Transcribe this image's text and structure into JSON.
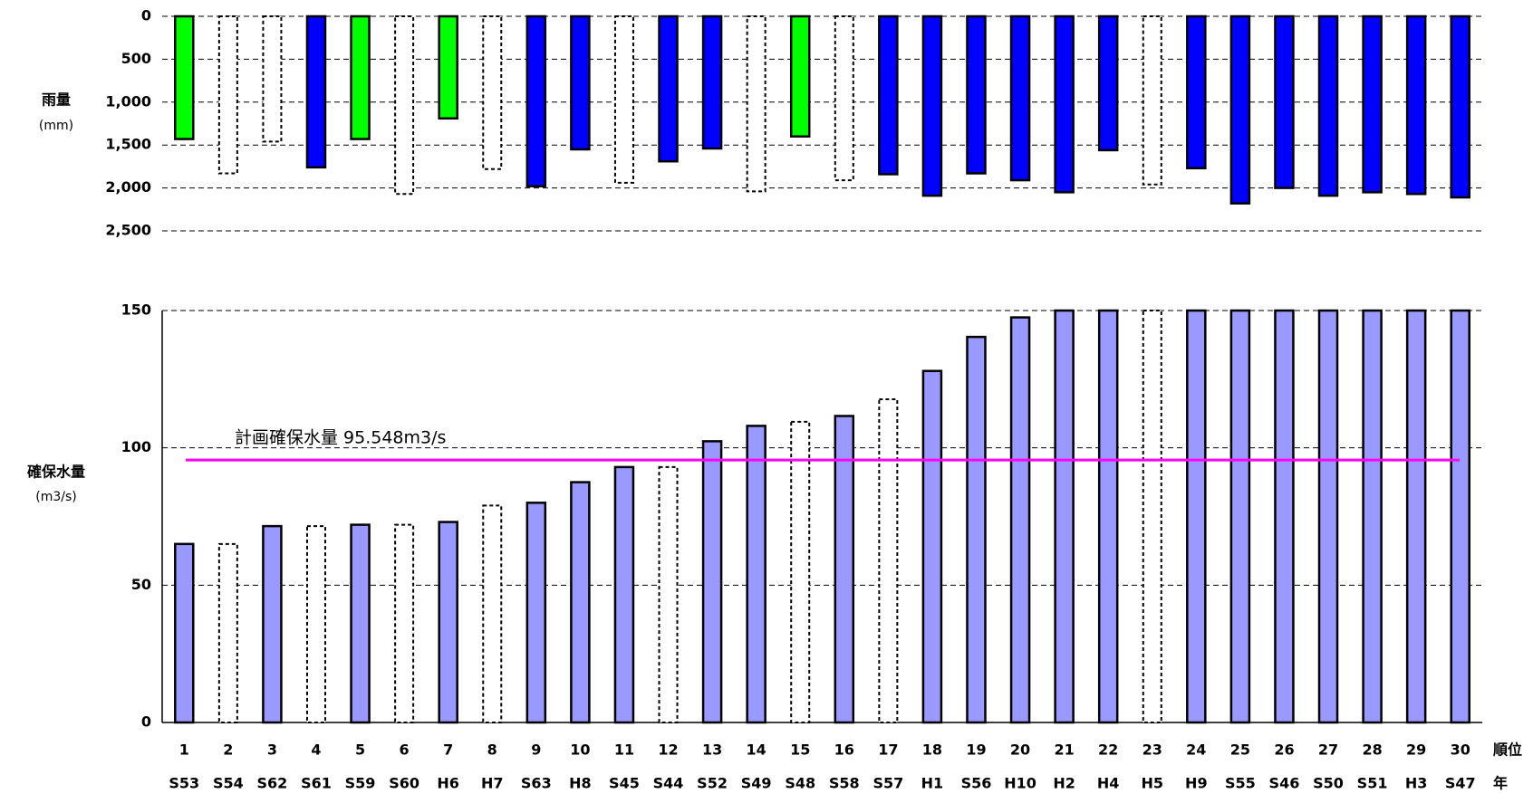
{
  "chart_data": [
    {
      "type": "bar",
      "y_label": "雨量",
      "y_unit": "(mm)",
      "inverted": true,
      "values": [
        1430,
        1830,
        1460,
        1760,
        1430,
        2070,
        1190,
        1780,
        1980,
        1550,
        1940,
        1690,
        1540,
        2040,
        1400,
        1910,
        1840,
        2090,
        1830,
        1910,
        2050,
        1560,
        1960,
        1770,
        2180,
        2000,
        2090,
        2050,
        2070,
        2110
      ],
      "colors": [
        "#00ff00",
        "#ffffff",
        "#ffffff",
        "#0000ff",
        "#00ff00",
        "#ffffff",
        "#00ff00",
        "#ffffff",
        "#0000ff",
        "#0000ff",
        "#ffffff",
        "#0000ff",
        "#0000ff",
        "#ffffff",
        "#00ff00",
        "#ffffff",
        "#0000ff",
        "#0000ff",
        "#0000ff",
        "#0000ff",
        "#0000ff",
        "#0000ff",
        "#ffffff",
        "#0000ff",
        "#0000ff",
        "#0000ff",
        "#0000ff",
        "#0000ff",
        "#0000ff",
        "#0000ff"
      ],
      "ylim": [
        0,
        2500
      ],
      "yticks": [
        0,
        500,
        {
          "value": 1000,
          "label": "1,000"
        },
        {
          "value": 1500,
          "label": "1,500"
        },
        {
          "value": 2000,
          "label": "2,000"
        },
        {
          "value": 2500,
          "label": "2,500"
        }
      ],
      "grid": true
    },
    {
      "type": "bar",
      "y_label": "確保水量",
      "y_unit": "(m3/s)",
      "rank_label": "順位",
      "year_label": "年",
      "ranks": [
        1,
        2,
        3,
        4,
        5,
        6,
        7,
        8,
        9,
        10,
        11,
        12,
        13,
        14,
        15,
        16,
        17,
        18,
        19,
        20,
        21,
        22,
        23,
        24,
        25,
        26,
        27,
        28,
        29,
        30
      ],
      "categories": [
        "S53",
        "S54",
        "S62",
        "S61",
        "S59",
        "S60",
        "H6",
        "H7",
        "S63",
        "H8",
        "S45",
        "S44",
        "S52",
        "S49",
        "S48",
        "S58",
        "S57",
        "H1",
        "S56",
        "H10",
        "H2",
        "H4",
        "H5",
        "H9",
        "S55",
        "S46",
        "S50",
        "S51",
        "H3",
        "S47"
      ],
      "values": [
        65,
        65,
        71.5,
        71.5,
        72,
        72,
        73,
        79,
        80,
        87.5,
        93,
        93,
        102.4,
        108,
        109.5,
        111.6,
        117.7,
        128,
        140.4,
        147.5,
        150,
        150,
        150,
        150,
        150,
        150,
        150,
        150,
        150,
        150
      ],
      "colors": [
        "#9999ff",
        "#ffffff",
        "#9999ff",
        "#ffffff",
        "#9999ff",
        "#ffffff",
        "#9999ff",
        "#ffffff",
        "#9999ff",
        "#9999ff",
        "#9999ff",
        "#ffffff",
        "#9999ff",
        "#9999ff",
        "#ffffff",
        "#9999ff",
        "#ffffff",
        "#9999ff",
        "#9999ff",
        "#9999ff",
        "#9999ff",
        "#9999ff",
        "#ffffff",
        "#9999ff",
        "#9999ff",
        "#9999ff",
        "#9999ff",
        "#9999ff",
        "#9999ff",
        "#9999ff"
      ],
      "ylim": [
        0,
        150
      ],
      "yticks": [
        0,
        50,
        100,
        150
      ],
      "grid": true,
      "reference_line": {
        "value": 95.548,
        "label": "計画確保水量  95.548m3/s",
        "color": "#ff00ff"
      }
    }
  ]
}
